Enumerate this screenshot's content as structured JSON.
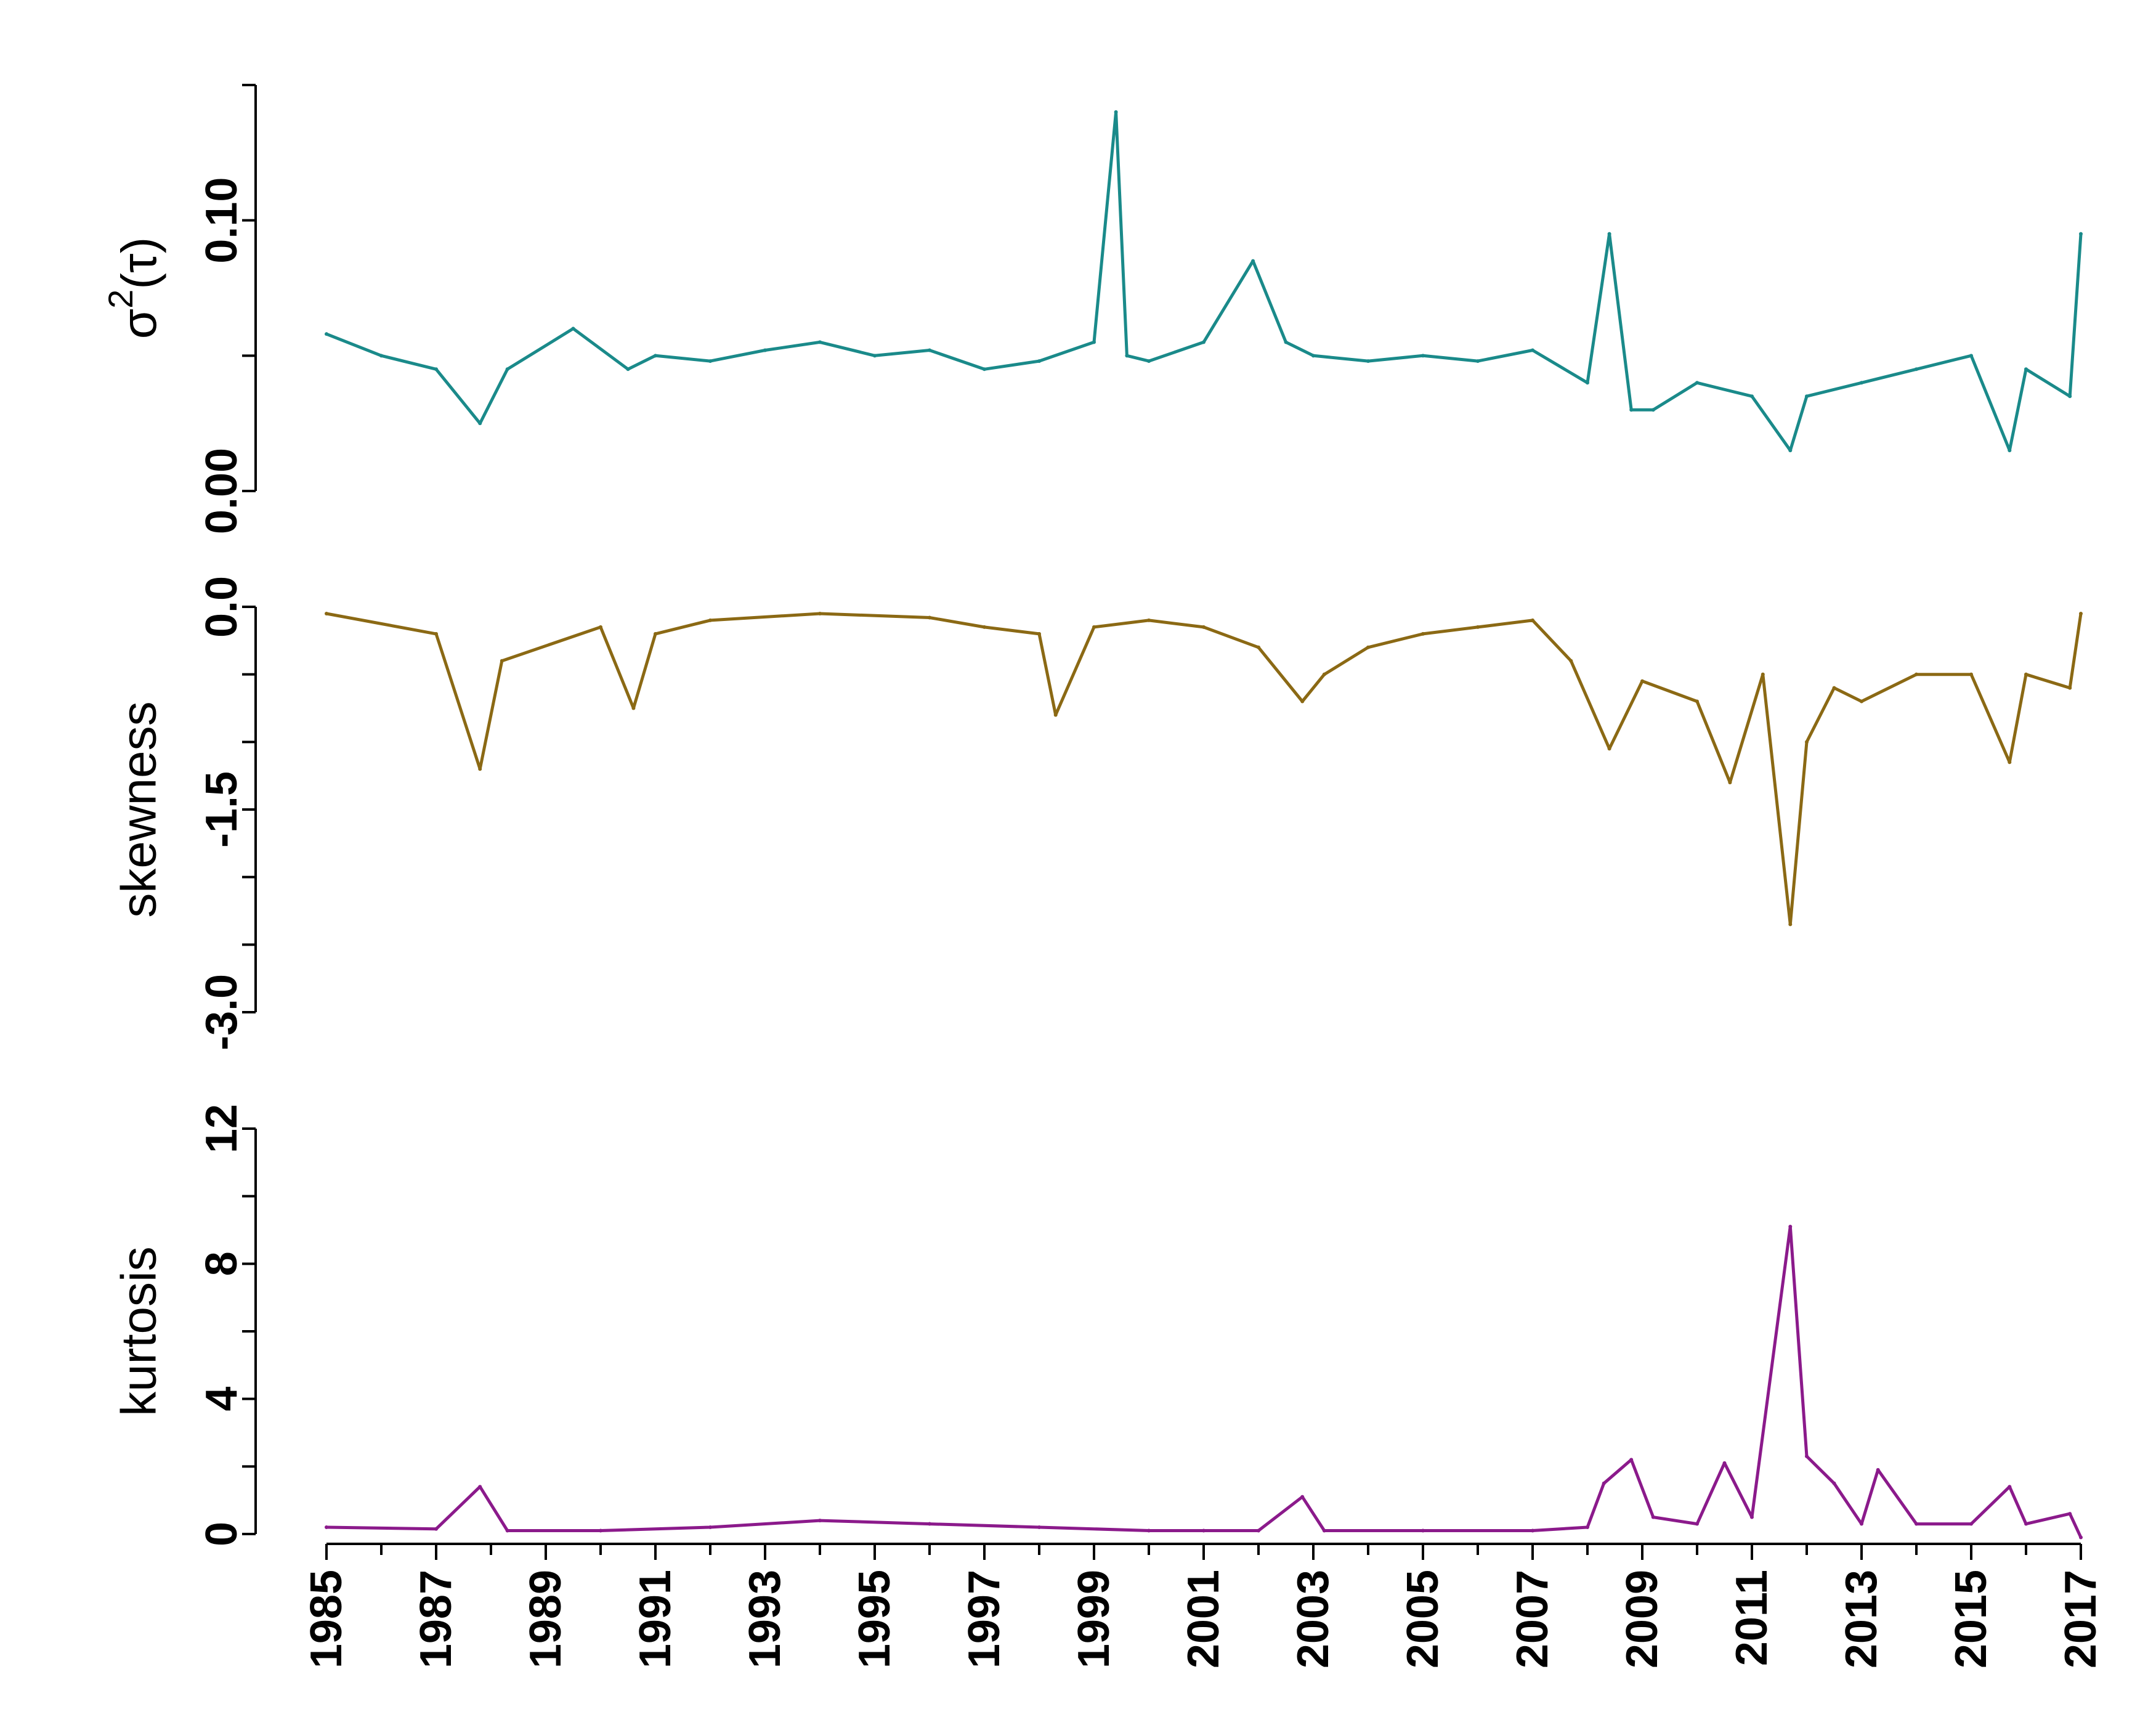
{
  "chart_data": {
    "type": "line",
    "x_axis": {
      "label": "",
      "range": [
        1985,
        2017
      ],
      "ticks": [
        "1985",
        "1987",
        "1989",
        "1991",
        "1993",
        "1995",
        "1997",
        "1999",
        "2001",
        "2003",
        "2005",
        "2007",
        "2009",
        "2011",
        "2013",
        "2015",
        "2017"
      ]
    },
    "panels": [
      {
        "name": "variance",
        "ylabel_base": "σ",
        "ylabel_sup": "2",
        "ylabel_arg": "(τ)",
        "ylim": [
          0.0,
          0.15
        ],
        "labeled_ticks": [
          {
            "v": 0.0,
            "t": "0.00"
          },
          {
            "v": 0.1,
            "t": "0.10"
          }
        ],
        "minor_ticks": [
          0.05,
          0.15
        ],
        "color": "#1a8a8a",
        "x": [
          1985.0,
          1986.0,
          1987.0,
          1987.8,
          1988.3,
          1989.5,
          1990.5,
          1991.0,
          1992.0,
          1993.0,
          1994.0,
          1995.0,
          1996.0,
          1997.0,
          1998.0,
          1999.0,
          1999.4,
          1999.6,
          2000.0,
          2001.0,
          2001.9,
          2002.5,
          2003.0,
          2004.0,
          2005.0,
          2006.0,
          2007.0,
          2008.0,
          2008.4,
          2008.8,
          2009.2,
          2010.0,
          2011.0,
          2011.7,
          2012.0,
          2013.0,
          2014.0,
          2015.0,
          2015.7,
          2016.0,
          2016.8,
          2017.0
        ],
        "values": [
          0.058,
          0.05,
          0.045,
          0.025,
          0.045,
          0.06,
          0.045,
          0.05,
          0.048,
          0.052,
          0.055,
          0.05,
          0.052,
          0.045,
          0.048,
          0.055,
          0.14,
          0.05,
          0.048,
          0.055,
          0.085,
          0.055,
          0.05,
          0.048,
          0.05,
          0.048,
          0.052,
          0.04,
          0.095,
          0.03,
          0.03,
          0.04,
          0.035,
          0.015,
          0.035,
          0.04,
          0.045,
          0.05,
          0.015,
          0.045,
          0.035,
          0.095
        ]
      },
      {
        "name": "skewness",
        "ylabel": "skewness",
        "ylim": [
          -3.0,
          0.0
        ],
        "labeled_ticks": [
          {
            "v": -3.0,
            "t": "-3.0"
          },
          {
            "v": -1.5,
            "t": "-1.5"
          },
          {
            "v": 0.0,
            "t": "0.0"
          }
        ],
        "minor_ticks": [
          -2.5,
          -2.0,
          -1.0,
          -0.5
        ],
        "color": "#8b6914",
        "x": [
          1985.0,
          1987.0,
          1987.8,
          1988.2,
          1990.0,
          1990.6,
          1991.0,
          1992.0,
          1994.0,
          1996.0,
          1997.0,
          1998.0,
          1998.3,
          1999.0,
          2000.0,
          2001.0,
          2002.0,
          2002.8,
          2003.2,
          2004.0,
          2005.0,
          2006.0,
          2007.0,
          2007.7,
          2008.4,
          2009.0,
          2010.0,
          2010.6,
          2011.2,
          2011.7,
          2012.0,
          2012.5,
          2013.0,
          2014.0,
          2015.0,
          2015.7,
          2016.0,
          2016.8,
          2017.0
        ],
        "values": [
          -0.05,
          -0.2,
          -1.2,
          -0.4,
          -0.15,
          -0.75,
          -0.2,
          -0.1,
          -0.05,
          -0.08,
          -0.15,
          -0.2,
          -0.8,
          -0.15,
          -0.1,
          -0.15,
          -0.3,
          -0.7,
          -0.5,
          -0.3,
          -0.2,
          -0.15,
          -0.1,
          -0.4,
          -1.05,
          -0.55,
          -0.7,
          -1.3,
          -0.5,
          -2.35,
          -1.0,
          -0.6,
          -0.7,
          -0.5,
          -0.5,
          -1.15,
          -0.5,
          -0.6,
          -0.05
        ]
      },
      {
        "name": "kurtosis",
        "ylabel": "kurtosis",
        "ylim": [
          0,
          12
        ],
        "labeled_ticks": [
          {
            "v": 0,
            "t": "0"
          },
          {
            "v": 4,
            "t": "4"
          },
          {
            "v": 8,
            "t": "8"
          },
          {
            "v": 12,
            "t": "12"
          }
        ],
        "minor_ticks": [
          2,
          6,
          10
        ],
        "color": "#8b1a8b",
        "x": [
          1985.0,
          1987.0,
          1987.8,
          1988.3,
          1990.0,
          1992.0,
          1994.0,
          1996.0,
          1998.0,
          2000.0,
          2001.0,
          2002.0,
          2002.8,
          2003.2,
          2005.0,
          2007.0,
          2008.0,
          2008.3,
          2008.8,
          2009.2,
          2010.0,
          2010.5,
          2011.0,
          2011.7,
          2012.0,
          2012.5,
          2013.0,
          2013.3,
          2014.0,
          2015.0,
          2015.7,
          2016.0,
          2016.8,
          2017.0
        ],
        "values": [
          0.2,
          0.15,
          1.4,
          0.1,
          0.1,
          0.2,
          0.4,
          0.3,
          0.2,
          0.1,
          0.1,
          0.1,
          1.1,
          0.1,
          0.1,
          0.1,
          0.2,
          1.5,
          2.2,
          0.5,
          0.3,
          2.1,
          0.5,
          9.1,
          2.3,
          1.5,
          0.3,
          1.9,
          0.3,
          0.3,
          1.4,
          0.3,
          0.6,
          -0.1
        ]
      }
    ]
  }
}
